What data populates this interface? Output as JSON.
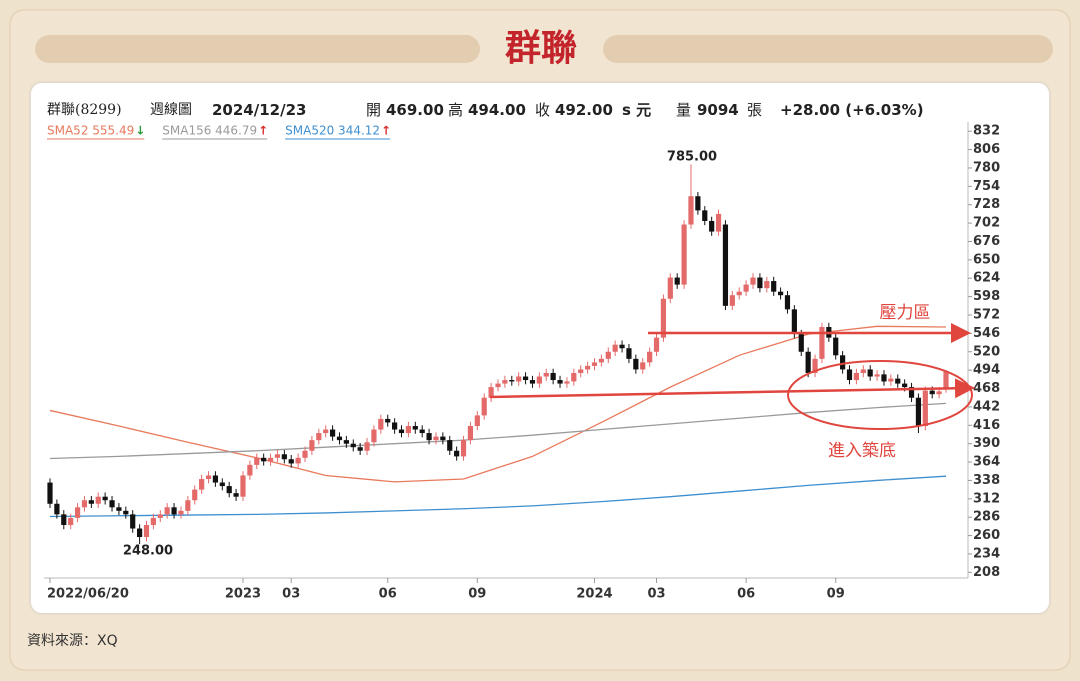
{
  "title": "群聯",
  "source": "資料來源：XQ",
  "header": {
    "stock": "群聯(8299)",
    "period": "週線圖",
    "date": "2024/12/23",
    "open_label": "開",
    "open": "469.00",
    "high_label": "高",
    "high": "494.00",
    "close_label": "收",
    "close": "492.00",
    "unit": "s 元",
    "volume_label": "量",
    "volume": "9094",
    "volume_unit": "張",
    "change": "+28.00 (+6.03%)"
  },
  "chart_data": {
    "type": "candlestick",
    "up_color": "#e46a6a",
    "down_color": "#111111",
    "categories": [
      "2022/06/20",
      null,
      null,
      null,
      null,
      null,
      null,
      null,
      null,
      null,
      null,
      null,
      null,
      null,
      null,
      null,
      null,
      null,
      null,
      null,
      null,
      null,
      null,
      null,
      null,
      null,
      null,
      null,
      "2023",
      null,
      null,
      null,
      null,
      null,
      null,
      "03",
      null,
      null,
      null,
      null,
      null,
      null,
      null,
      null,
      null,
      null,
      null,
      null,
      null,
      "06",
      null,
      null,
      null,
      null,
      null,
      null,
      null,
      null,
      null,
      null,
      null,
      null,
      "09",
      null,
      null,
      null,
      null,
      null,
      null,
      null,
      null,
      null,
      null,
      null,
      null,
      null,
      null,
      null,
      null,
      "2024",
      null,
      null,
      null,
      null,
      null,
      null,
      null,
      null,
      "03",
      null,
      null,
      null,
      null,
      null,
      null,
      null,
      null,
      null,
      null,
      null,
      null,
      "06",
      null,
      null,
      null,
      null,
      null,
      null,
      null,
      null,
      null,
      null,
      null,
      null,
      "09",
      null,
      null,
      null,
      null,
      null,
      null,
      null,
      null,
      null,
      null,
      null,
      null,
      null,
      null,
      null,
      null
    ],
    "open": [
      335,
      305,
      290,
      275,
      285,
      300,
      310,
      305,
      315,
      310,
      300,
      295,
      290,
      270,
      258,
      275,
      285,
      290,
      300,
      290,
      295,
      310,
      325,
      340,
      345,
      335,
      330,
      320,
      315,
      345,
      360,
      370,
      365,
      370,
      375,
      368,
      362,
      370,
      380,
      395,
      405,
      410,
      400,
      395,
      390,
      385,
      380,
      392,
      410,
      425,
      420,
      410,
      405,
      415,
      410,
      405,
      395,
      400,
      395,
      380,
      372,
      395,
      415,
      430,
      455,
      470,
      475,
      480,
      478,
      485,
      480,
      475,
      485,
      490,
      480,
      475,
      478,
      490,
      495,
      500,
      505,
      510,
      520,
      530,
      525,
      510,
      495,
      505,
      520,
      540,
      595,
      625,
      615,
      700,
      740,
      720,
      705,
      690,
      700,
      585,
      600,
      605,
      615,
      625,
      610,
      620,
      605,
      600,
      580,
      545,
      520,
      490,
      510,
      555,
      540,
      515,
      495,
      480,
      490,
      495,
      485,
      488,
      478,
      482,
      475,
      470,
      455,
      415,
      465,
      460,
      469
    ],
    "high": [
      341,
      311,
      296,
      291,
      306,
      316,
      316,
      321,
      321,
      316,
      306,
      301,
      296,
      276,
      281,
      291,
      296,
      306,
      306,
      301,
      316,
      331,
      346,
      351,
      351,
      341,
      336,
      326,
      351,
      366,
      376,
      376,
      376,
      381,
      381,
      374,
      376,
      386,
      401,
      411,
      416,
      416,
      406,
      401,
      396,
      391,
      398,
      416,
      431,
      431,
      426,
      416,
      421,
      421,
      416,
      411,
      406,
      406,
      401,
      386,
      401,
      421,
      436,
      461,
      476,
      481,
      486,
      486,
      491,
      491,
      486,
      491,
      496,
      496,
      486,
      484,
      496,
      501,
      506,
      511,
      516,
      526,
      536,
      536,
      531,
      516,
      511,
      526,
      546,
      601,
      631,
      631,
      706,
      785,
      746,
      726,
      711,
      721,
      706,
      606,
      611,
      621,
      631,
      631,
      626,
      626,
      611,
      606,
      586,
      551,
      526,
      516,
      561,
      561,
      546,
      521,
      501,
      496,
      501,
      501,
      494,
      494,
      488,
      488,
      481,
      476,
      461,
      471,
      471,
      470,
      494
    ],
    "low": [
      299,
      284,
      269,
      269,
      279,
      294,
      299,
      299,
      304,
      294,
      289,
      284,
      264,
      248,
      252,
      269,
      279,
      284,
      284,
      284,
      289,
      304,
      319,
      334,
      329,
      324,
      314,
      309,
      309,
      339,
      354,
      359,
      359,
      364,
      362,
      356,
      356,
      364,
      374,
      389,
      399,
      394,
      389,
      384,
      379,
      374,
      374,
      386,
      404,
      414,
      404,
      399,
      399,
      404,
      399,
      389,
      389,
      389,
      374,
      366,
      366,
      389,
      409,
      424,
      449,
      464,
      469,
      472,
      472,
      474,
      469,
      469,
      479,
      474,
      469,
      469,
      472,
      484,
      489,
      494,
      499,
      504,
      514,
      519,
      504,
      489,
      489,
      499,
      514,
      534,
      589,
      609,
      609,
      694,
      714,
      699,
      684,
      684,
      579,
      579,
      594,
      599,
      609,
      604,
      604,
      599,
      594,
      574,
      539,
      514,
      484,
      484,
      504,
      534,
      509,
      489,
      474,
      474,
      484,
      479,
      479,
      472,
      472,
      469,
      464,
      449,
      405,
      409,
      454,
      454,
      462
    ],
    "close": [
      305,
      290,
      275,
      285,
      300,
      310,
      305,
      315,
      310,
      300,
      295,
      290,
      270,
      258,
      275,
      285,
      290,
      300,
      290,
      295,
      310,
      325,
      340,
      345,
      335,
      330,
      320,
      315,
      345,
      360,
      370,
      365,
      370,
      375,
      368,
      362,
      370,
      380,
      395,
      405,
      410,
      400,
      395,
      390,
      385,
      380,
      392,
      410,
      425,
      420,
      410,
      405,
      415,
      410,
      405,
      395,
      400,
      395,
      380,
      372,
      395,
      415,
      430,
      455,
      470,
      475,
      480,
      478,
      485,
      480,
      475,
      485,
      490,
      480,
      475,
      478,
      490,
      495,
      500,
      505,
      510,
      520,
      530,
      525,
      510,
      495,
      505,
      520,
      540,
      595,
      625,
      615,
      700,
      740,
      720,
      705,
      690,
      715,
      585,
      600,
      605,
      615,
      625,
      610,
      620,
      605,
      600,
      580,
      545,
      520,
      490,
      510,
      555,
      540,
      515,
      495,
      480,
      490,
      495,
      485,
      488,
      478,
      482,
      475,
      470,
      455,
      415,
      465,
      460,
      464,
      492
    ],
    "series": [
      {
        "name": "SMA52 555.49",
        "trend": "↓",
        "color": "#e8795c",
        "x": [
          0,
          10,
          20,
          30,
          40,
          50,
          60,
          70,
          80,
          90,
          100,
          110,
          120,
          130
        ],
        "values": [
          437,
          415,
          392,
          370,
          345,
          336,
          340,
          372,
          420,
          470,
          515,
          545,
          556,
          555
        ]
      },
      {
        "name": "SMA156 446.79",
        "trend": "↑",
        "color": "#9a9a9a",
        "x": [
          0,
          10,
          20,
          30,
          40,
          50,
          60,
          70,
          80,
          90,
          100,
          110,
          120,
          130
        ],
        "values": [
          369,
          372,
          376,
          380,
          385,
          390,
          395,
          402,
          410,
          418,
          426,
          434,
          441,
          447
        ]
      },
      {
        "name": "SMA520 344.12",
        "trend": "↑",
        "color": "#3d8fd0",
        "x": [
          0,
          10,
          20,
          30,
          40,
          50,
          60,
          70,
          80,
          90,
          100,
          110,
          120,
          130
        ],
        "values": [
          287,
          288,
          289,
          290,
          292,
          295,
          298,
          302,
          308,
          315,
          323,
          331,
          338,
          344
        ]
      }
    ],
    "xlim": [
      0,
      130
    ],
    "ylim": [
      200,
      845
    ],
    "yticks": [
      208,
      234,
      260,
      286,
      312,
      338,
      364,
      390,
      416,
      442,
      468,
      494,
      520,
      546,
      572,
      598,
      624,
      650,
      676,
      702,
      728,
      754,
      780,
      806,
      832
    ],
    "annotations": {
      "peak": "785.00",
      "low": "248.00",
      "resistance": "壓力區",
      "bottoming": "進入築底"
    }
  }
}
